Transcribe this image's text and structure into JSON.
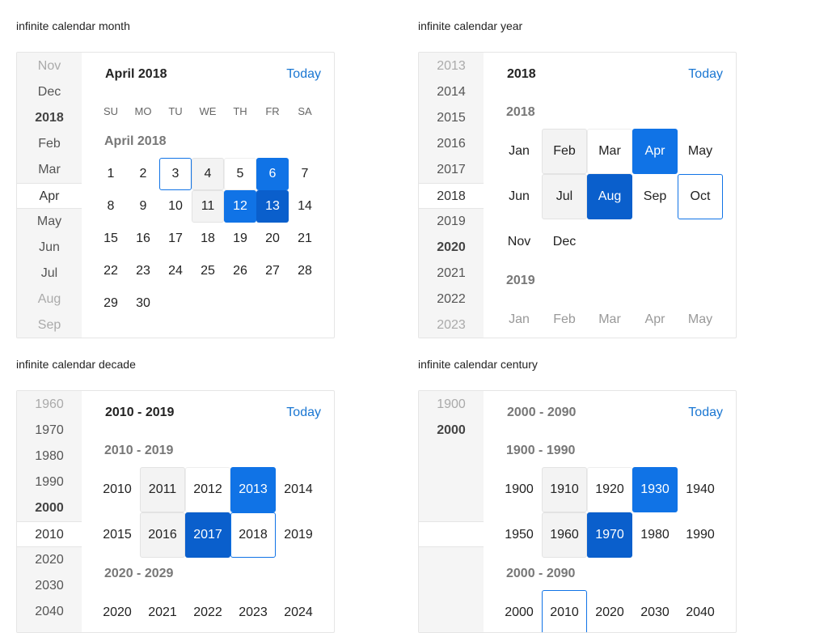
{
  "labels": {
    "month": "infinite calendar month",
    "year": "infinite calendar year",
    "decade": "infinite calendar decade",
    "century": "infinite calendar century"
  },
  "today_label": "Today",
  "month_cal": {
    "nav": [
      "Nov",
      "Dec",
      "2018",
      "Feb",
      "Mar",
      "Apr",
      "May",
      "Jun",
      "Jul",
      "Aug",
      "Sep"
    ],
    "header": "April 2018",
    "section": "April 2018",
    "weekdays": [
      "SU",
      "MO",
      "TU",
      "WE",
      "TH",
      "FR",
      "SA"
    ],
    "weeks": [
      [
        "1",
        "2",
        "3",
        "4",
        "5",
        "6",
        "7"
      ],
      [
        "8",
        "9",
        "10",
        "11",
        "12",
        "13",
        "14"
      ],
      [
        "15",
        "16",
        "17",
        "18",
        "19",
        "20",
        "21"
      ],
      [
        "22",
        "23",
        "24",
        "25",
        "26",
        "27",
        "28"
      ],
      [
        "29",
        "30"
      ]
    ]
  },
  "year_cal": {
    "nav": [
      "2013",
      "2014",
      "2015",
      "2016",
      "2017",
      "2018",
      "2019",
      "2020",
      "2021",
      "2022",
      "2023"
    ],
    "header": "2018",
    "section1": "2018",
    "months_rows": [
      [
        "Jan",
        "Feb",
        "Mar",
        "Apr",
        "May"
      ],
      [
        "Jun",
        "Jul",
        "Aug",
        "Sep",
        "Oct"
      ],
      [
        "Nov",
        "Dec"
      ]
    ],
    "section2": "2019",
    "next_months": [
      "Jan",
      "Feb",
      "Mar",
      "Apr",
      "May"
    ]
  },
  "decade_cal": {
    "nav": [
      "1960",
      "1970",
      "1980",
      "1990",
      "2000",
      "2010",
      "2020",
      "2030",
      "2040"
    ],
    "header": "2010 - 2019",
    "section1": "2010 - 2019",
    "rows": [
      [
        "2010",
        "2011",
        "2012",
        "2013",
        "2014"
      ],
      [
        "2015",
        "2016",
        "2017",
        "2018",
        "2019"
      ]
    ],
    "section2": "2020 - 2029",
    "next_row": [
      "2020",
      "2021",
      "2022",
      "2023",
      "2024"
    ]
  },
  "century_cal": {
    "nav": [
      "1900",
      "2000"
    ],
    "header": "2000 - 2090",
    "section1": "1900 - 1990",
    "rows": [
      [
        "1900",
        "1910",
        "1920",
        "1930",
        "1940"
      ],
      [
        "1950",
        "1960",
        "1970",
        "1980",
        "1990"
      ]
    ],
    "section2": "2000 - 2090",
    "next_row": [
      "2000",
      "2010",
      "2020",
      "2030",
      "2040"
    ]
  }
}
